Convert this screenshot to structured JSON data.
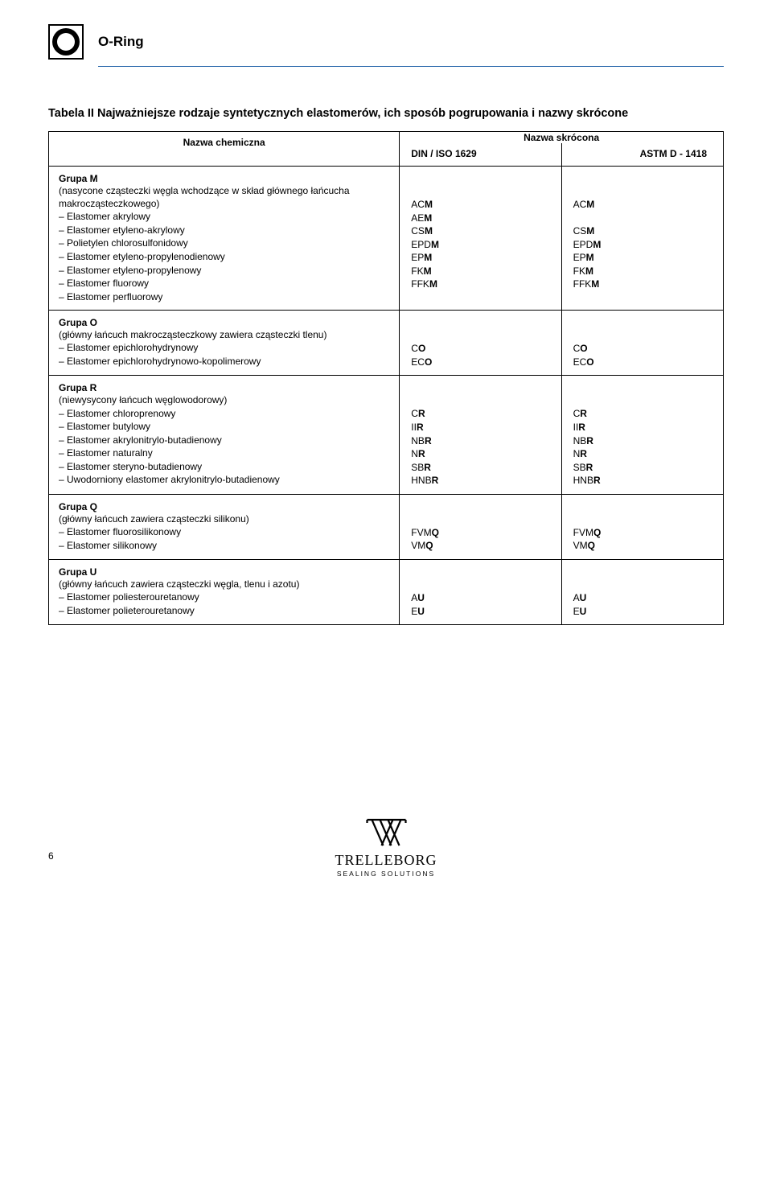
{
  "page": {
    "title": "O-Ring",
    "table_title": "Tabela II Najważniejsze rodzaje syntetycznych elastomerów, ich sposób pogrupowania i nazwy skrócone",
    "header": {
      "chem": "Nazwa chemiczna",
      "short": "Nazwa skrócona",
      "din": "DIN / ISO 1629",
      "astm": "ASTM D - 1418"
    },
    "groups": [
      {
        "head": "Grupa M",
        "desc": "(nasycone cząsteczki węgla wchodzące w skład głównego łańcucha makrocząsteczkowego)",
        "items": [
          "Elastomer akrylowy",
          "Elastomer etyleno-akrylowy",
          "Polietylen chlorosulfonidowy",
          "Elastomer etyleno-propylenodienowy",
          "Elastomer etyleno-propylenowy",
          "Elastomer fluorowy",
          "Elastomer perfluorowy"
        ],
        "din": [
          {
            "p": "AC",
            "s": "M"
          },
          {
            "p": "AE",
            "s": "M"
          },
          {
            "p": "CS",
            "s": "M"
          },
          {
            "p": "EPD",
            "s": "M"
          },
          {
            "p": "EP",
            "s": "M"
          },
          {
            "p": "FK",
            "s": "M"
          },
          {
            "p": "FFK",
            "s": "M"
          }
        ],
        "astm": [
          {
            "p": "AC",
            "s": "M"
          },
          {
            "p": "",
            "s": ""
          },
          {
            "p": "CS",
            "s": "M"
          },
          {
            "p": "EPD",
            "s": "M"
          },
          {
            "p": "EP",
            "s": "M"
          },
          {
            "p": "FK",
            "s": "M"
          },
          {
            "p": "FFK",
            "s": "M"
          }
        ],
        "pad_din": 2,
        "pad_astm": 2
      },
      {
        "head": "Grupa O",
        "desc": "(główny łańcuch makrocząsteczkowy zawiera cząsteczki tlenu)",
        "items": [
          "Elastomer epichlorohydrynowy",
          "Elastomer epichlorohydrynowo-kopolimerowy"
        ],
        "din": [
          {
            "p": "C",
            "s": "O"
          },
          {
            "p": "EC",
            "s": "O"
          }
        ],
        "astm": [
          {
            "p": "C",
            "s": "O"
          },
          {
            "p": "EC",
            "s": "O"
          }
        ],
        "pad_din": 2,
        "pad_astm": 2
      },
      {
        "head": "Grupa R",
        "desc": "(niewysycony łańcuch węglowodorowy)",
        "items": [
          "Elastomer chloroprenowy",
          "Elastomer butylowy",
          "Elastomer akrylonitrylo-butadienowy",
          "Elastomer naturalny",
          "Elastomer steryno-butadienowy",
          "Uwodorniony elastomer akrylonitrylo-butadienowy"
        ],
        "din": [
          {
            "p": "C",
            "s": "R"
          },
          {
            "p": "II",
            "s": "R"
          },
          {
            "p": "NB",
            "s": "R"
          },
          {
            "p": "N",
            "s": "R"
          },
          {
            "p": "SB",
            "s": "R"
          },
          {
            "p": "HNB",
            "s": "R"
          }
        ],
        "astm": [
          {
            "p": "C",
            "s": "R"
          },
          {
            "p": "II",
            "s": "R"
          },
          {
            "p": "NB",
            "s": "R"
          },
          {
            "p": "N",
            "s": "R"
          },
          {
            "p": "SB",
            "s": "R"
          },
          {
            "p": "HNB",
            "s": "R"
          }
        ],
        "pad_din": 2,
        "pad_astm": 2
      },
      {
        "head": "Grupa Q",
        "desc": "(główny łańcuch zawiera cząsteczki silikonu)",
        "items": [
          "Elastomer fluorosilikonowy",
          "Elastomer silikonowy"
        ],
        "din": [
          {
            "p": "FVM",
            "s": "Q"
          },
          {
            "p": "VM",
            "s": "Q"
          }
        ],
        "astm": [
          {
            "p": "FVM",
            "s": "Q"
          },
          {
            "p": "VM",
            "s": "Q"
          }
        ],
        "pad_din": 2,
        "pad_astm": 2
      },
      {
        "head": "Grupa U",
        "desc": "(główny łańcuch zawiera cząsteczki węgla, tlenu i azotu)",
        "items": [
          "Elastomer poliesterouretanowy",
          "Elastomer polieterouretanowy"
        ],
        "din": [
          {
            "p": "A",
            "s": "U"
          },
          {
            "p": "E",
            "s": "U"
          }
        ],
        "astm": [
          {
            "p": "A",
            "s": "U"
          },
          {
            "p": "E",
            "s": "U"
          }
        ],
        "pad_din": 2,
        "pad_astm": 2
      }
    ],
    "page_number": "6",
    "logo_name": "TRELLEBORG",
    "logo_sub": "SEALING SOLUTIONS"
  },
  "colors": {
    "rule": "#1a5da6",
    "text": "#000000",
    "border": "#000000",
    "bg": "#ffffff"
  },
  "fonts": {
    "body": "Arial",
    "title_pt": 17,
    "table_title_pt": 14.5,
    "body_pt": 12,
    "logo_family": "Georgia"
  }
}
